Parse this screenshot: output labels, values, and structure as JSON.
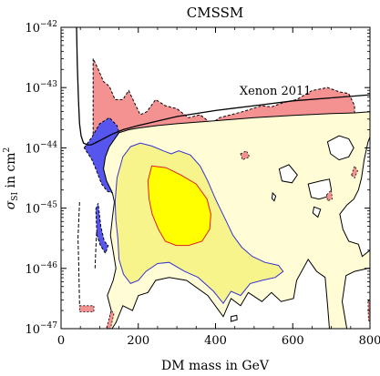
{
  "chart_data": {
    "type": "contour",
    "title": "CMSSM",
    "xlabel": "DM mass in GeV",
    "ylabel": "σ_SI in cm²",
    "ylabel_parts": {
      "main": "σ",
      "sub": "SI",
      "rest": " in cm",
      "sup": "2"
    },
    "xlim": [
      0,
      800
    ],
    "ylim_log10": [
      -47,
      -42
    ],
    "y_scale": "log",
    "grid": false,
    "x_ticks": [
      0,
      200,
      400,
      600,
      800
    ],
    "x_tick_labels": [
      "0",
      "200",
      "400",
      "600",
      "800"
    ],
    "y_ticks_log10": [
      -47,
      -46,
      -45,
      -44,
      -43,
      -42
    ],
    "y_tick_labels": [
      {
        "base": "10",
        "exp": "−47"
      },
      {
        "base": "10",
        "exp": "−46"
      },
      {
        "base": "10",
        "exp": "−45"
      },
      {
        "base": "10",
        "exp": "−44"
      },
      {
        "base": "10",
        "exp": "−43"
      },
      {
        "base": "10",
        "exp": "−42"
      }
    ],
    "annotation": {
      "text": "Xenon 2011",
      "x": 555,
      "y_log10": -43.12
    },
    "colors": {
      "pink": "#f49292",
      "blue": "#5656ee",
      "cream": "#fffcd6",
      "light_yellow": "#f8f48c",
      "yellow": "#ffff00",
      "red_line": "#dd2222",
      "blue_line": "#3333cc",
      "black_line": "#000000"
    },
    "regions": [
      {
        "role": "pink-top",
        "fill": "#f49292",
        "stroke": "#000000",
        "dashed": true,
        "points": [
          [
            83,
            -44.0
          ],
          [
            83,
            -42.52
          ],
          [
            95,
            -42.68
          ],
          [
            110,
            -42.9
          ],
          [
            125,
            -42.98
          ],
          [
            140,
            -43.2
          ],
          [
            160,
            -43.2
          ],
          [
            175,
            -43.05
          ],
          [
            190,
            -43.25
          ],
          [
            205,
            -43.45
          ],
          [
            222,
            -43.4
          ],
          [
            245,
            -43.2
          ],
          [
            270,
            -43.3
          ],
          [
            300,
            -43.35
          ],
          [
            330,
            -43.5
          ],
          [
            360,
            -43.45
          ],
          [
            390,
            -43.6
          ],
          [
            410,
            -43.5
          ],
          [
            440,
            -43.45
          ],
          [
            470,
            -43.4
          ],
          [
            495,
            -43.35
          ],
          [
            520,
            -43.3
          ],
          [
            545,
            -43.32
          ],
          [
            575,
            -43.25
          ],
          [
            610,
            -43.2
          ],
          [
            650,
            -43.05
          ],
          [
            690,
            -43.0
          ],
          [
            720,
            -43.07
          ],
          [
            745,
            -43.1
          ],
          [
            760,
            -43.3
          ],
          [
            760,
            -43.42
          ],
          [
            600,
            -43.5
          ],
          [
            400,
            -43.6
          ],
          [
            300,
            -43.65
          ],
          [
            250,
            -43.7
          ],
          [
            200,
            -43.8
          ],
          [
            160,
            -43.87
          ],
          [
            125,
            -43.95
          ],
          [
            100,
            -44.0
          ]
        ]
      },
      {
        "role": "blue-left",
        "fill": "#5656ee",
        "stroke": "#000000",
        "dashed": true,
        "points": [
          [
            60,
            -44.0
          ],
          [
            80,
            -43.82
          ],
          [
            100,
            -43.6
          ],
          [
            125,
            -43.5
          ],
          [
            145,
            -43.63
          ],
          [
            150,
            -43.75
          ],
          [
            125,
            -43.98
          ],
          [
            115,
            -44.15
          ],
          [
            110,
            -44.35
          ],
          [
            118,
            -44.55
          ],
          [
            128,
            -44.68
          ],
          [
            133,
            -44.75
          ],
          [
            120,
            -44.72
          ],
          [
            105,
            -44.6
          ],
          [
            90,
            -44.35
          ],
          [
            80,
            -44.2
          ],
          [
            70,
            -44.1
          ]
        ]
      },
      {
        "role": "blue-strip",
        "fill": "#5656ee",
        "stroke": "#000000",
        "dashed": true,
        "points": [
          [
            90,
            -45.02
          ],
          [
            96,
            -44.92
          ],
          [
            103,
            -45.3
          ],
          [
            112,
            -45.55
          ],
          [
            122,
            -45.62
          ],
          [
            115,
            -45.75
          ],
          [
            102,
            -45.62
          ],
          [
            93,
            -45.45
          ]
        ]
      },
      {
        "role": "cream-base",
        "fill": "#fffcd6",
        "stroke": "#000000",
        "dashed": false,
        "points": [
          [
            133,
            -44.75
          ],
          [
            128,
            -44.68
          ],
          [
            118,
            -44.55
          ],
          [
            110,
            -44.35
          ],
          [
            115,
            -44.15
          ],
          [
            125,
            -43.98
          ],
          [
            150,
            -43.75
          ],
          [
            175,
            -43.7
          ],
          [
            200,
            -43.67
          ],
          [
            250,
            -43.63
          ],
          [
            300,
            -43.6
          ],
          [
            400,
            -43.55
          ],
          [
            500,
            -43.5
          ],
          [
            600,
            -43.46
          ],
          [
            700,
            -43.43
          ],
          [
            760,
            -43.42
          ],
          [
            800,
            -43.4
          ],
          [
            800,
            -47.0
          ],
          [
            695,
            -47.0
          ],
          [
            690,
            -46.6
          ],
          [
            684,
            -46.15
          ],
          [
            662,
            -46.05
          ],
          [
            640,
            -45.85
          ],
          [
            610,
            -46.2
          ],
          [
            602,
            -46.5
          ],
          [
            570,
            -46.55
          ],
          [
            545,
            -46.4
          ],
          [
            520,
            -46.55
          ],
          [
            485,
            -46.4
          ],
          [
            465,
            -46.62
          ],
          [
            440,
            -46.5
          ],
          [
            420,
            -46.8
          ],
          [
            380,
            -46.45
          ],
          [
            325,
            -46.2
          ],
          [
            280,
            -46.15
          ],
          [
            245,
            -46.2
          ],
          [
            225,
            -46.4
          ],
          [
            200,
            -46.45
          ],
          [
            185,
            -46.7
          ],
          [
            160,
            -46.62
          ],
          [
            142,
            -46.9
          ],
          [
            132,
            -47.0
          ],
          [
            120,
            -47.0
          ],
          [
            130,
            -46.7
          ],
          [
            120,
            -46.45
          ],
          [
            135,
            -46.2
          ],
          [
            142,
            -46.0
          ],
          [
            136,
            -45.75
          ],
          [
            128,
            -45.45
          ],
          [
            133,
            -45.15
          ],
          [
            138,
            -44.9
          ]
        ]
      },
      {
        "role": "light-yellow",
        "fill": "#f8f48c",
        "stroke": "#3333cc",
        "dashed": false,
        "points": [
          [
            145,
            -44.5
          ],
          [
            160,
            -44.15
          ],
          [
            180,
            -43.98
          ],
          [
            205,
            -43.92
          ],
          [
            235,
            -43.97
          ],
          [
            265,
            -44.05
          ],
          [
            285,
            -44.1
          ],
          [
            305,
            -44.05
          ],
          [
            335,
            -44.12
          ],
          [
            360,
            -44.3
          ],
          [
            380,
            -44.55
          ],
          [
            400,
            -44.85
          ],
          [
            428,
            -45.22
          ],
          [
            445,
            -45.45
          ],
          [
            468,
            -45.65
          ],
          [
            495,
            -45.8
          ],
          [
            528,
            -45.9
          ],
          [
            563,
            -45.95
          ],
          [
            575,
            -46.05
          ],
          [
            555,
            -46.15
          ],
          [
            520,
            -46.2
          ],
          [
            490,
            -46.25
          ],
          [
            465,
            -46.45
          ],
          [
            440,
            -46.38
          ],
          [
            420,
            -46.58
          ],
          [
            395,
            -46.38
          ],
          [
            355,
            -46.15
          ],
          [
            320,
            -46.05
          ],
          [
            280,
            -45.9
          ],
          [
            250,
            -45.92
          ],
          [
            220,
            -46.05
          ],
          [
            200,
            -46.2
          ],
          [
            180,
            -46.25
          ],
          [
            162,
            -46.1
          ],
          [
            150,
            -45.85
          ],
          [
            147,
            -45.5
          ],
          [
            142,
            -45.2
          ],
          [
            140,
            -44.9
          ]
        ]
      },
      {
        "role": "yellow-core",
        "fill": "#ffff00",
        "stroke": "#dd2222",
        "dashed": false,
        "points": [
          [
            235,
            -44.3
          ],
          [
            272,
            -44.33
          ],
          [
            310,
            -44.45
          ],
          [
            350,
            -44.6
          ],
          [
            378,
            -44.85
          ],
          [
            388,
            -45.1
          ],
          [
            385,
            -45.35
          ],
          [
            365,
            -45.55
          ],
          [
            330,
            -45.62
          ],
          [
            298,
            -45.62
          ],
          [
            270,
            -45.55
          ],
          [
            252,
            -45.35
          ],
          [
            236,
            -45.1
          ],
          [
            228,
            -44.85
          ],
          [
            225,
            -44.55
          ]
        ]
      }
    ],
    "holes": [
      {
        "points": [
          [
            565,
            -44.35
          ],
          [
            590,
            -44.28
          ],
          [
            612,
            -44.45
          ],
          [
            598,
            -44.58
          ],
          [
            572,
            -44.55
          ]
        ]
      },
      {
        "points": [
          [
            548,
            -44.75
          ],
          [
            556,
            -44.8
          ],
          [
            552,
            -44.88
          ],
          [
            546,
            -44.84
          ]
        ]
      },
      {
        "points": [
          [
            640,
            -44.6
          ],
          [
            672,
            -44.55
          ],
          [
            695,
            -44.52
          ],
          [
            700,
            -44.7
          ],
          [
            695,
            -44.8
          ],
          [
            668,
            -44.85
          ],
          [
            648,
            -44.82
          ]
        ]
      },
      {
        "points": [
          [
            655,
            -44.98
          ],
          [
            672,
            -45.02
          ],
          [
            665,
            -45.15
          ],
          [
            652,
            -45.08
          ]
        ]
      },
      {
        "points": [
          [
            440,
            -46.8
          ],
          [
            455,
            -46.78
          ],
          [
            456,
            -46.85
          ],
          [
            440,
            -46.88
          ]
        ]
      },
      {
        "points": [
          [
            722,
            -45.1
          ],
          [
            740,
            -44.95
          ],
          [
            758,
            -44.85
          ],
          [
            770,
            -44.7
          ],
          [
            778,
            -44.5
          ],
          [
            785,
            -44.2
          ],
          [
            795,
            -43.9
          ],
          [
            800,
            -43.82
          ],
          [
            800,
            -45.7
          ],
          [
            780,
            -45.8
          ],
          [
            770,
            -45.6
          ],
          [
            745,
            -45.55
          ],
          [
            730,
            -45.35
          ]
        ]
      },
      {
        "points": [
          [
            690,
            -43.9
          ],
          [
            720,
            -43.8
          ],
          [
            745,
            -43.85
          ],
          [
            758,
            -44.0
          ],
          [
            745,
            -44.15
          ],
          [
            720,
            -44.2
          ],
          [
            698,
            -44.1
          ]
        ]
      },
      {
        "points": [
          [
            738,
            -46.12
          ],
          [
            760,
            -46.05
          ],
          [
            795,
            -46.0
          ],
          [
            800,
            -46.0
          ],
          [
            800,
            -47.0
          ],
          [
            740,
            -47.0
          ],
          [
            728,
            -46.55
          ]
        ]
      }
    ],
    "pink_patches": [
      {
        "points": [
          [
            465,
            -44.1
          ],
          [
            480,
            -44.05
          ],
          [
            488,
            -44.15
          ],
          [
            470,
            -44.2
          ]
        ]
      },
      {
        "points": [
          [
            688,
            -44.78
          ],
          [
            700,
            -44.7
          ],
          [
            702,
            -44.85
          ],
          [
            690,
            -44.88
          ]
        ]
      },
      {
        "points": [
          [
            48,
            -46.62
          ],
          [
            85,
            -46.62
          ],
          [
            85,
            -46.72
          ],
          [
            48,
            -46.72
          ]
        ]
      },
      {
        "points": [
          [
            118,
            -46.98
          ],
          [
            130,
            -46.7
          ],
          [
            137,
            -46.75
          ],
          [
            128,
            -47.0
          ]
        ]
      },
      {
        "points": [
          [
            795,
            -46.55
          ],
          [
            800,
            -46.5
          ],
          [
            800,
            -46.9
          ],
          [
            796,
            -46.85
          ]
        ]
      },
      {
        "points": [
          [
            752,
            -44.45
          ],
          [
            760,
            -44.3
          ],
          [
            768,
            -44.38
          ],
          [
            760,
            -44.5
          ]
        ]
      }
    ],
    "dashed_lines": [
      {
        "points": [
          [
            48,
            -44.9
          ],
          [
            44,
            -45.5
          ],
          [
            46,
            -46.0
          ],
          [
            48,
            -46.6
          ]
        ]
      },
      {
        "points": [
          [
            92,
            -45.4
          ],
          [
            90,
            -45.7
          ],
          [
            88,
            -46.0
          ]
        ]
      }
    ],
    "xenon_line": [
      [
        40,
        -42.0
      ],
      [
        42,
        -42.6
      ],
      [
        45,
        -43.2
      ],
      [
        48,
        -43.6
      ],
      [
        52,
        -43.8
      ],
      [
        58,
        -43.92
      ],
      [
        68,
        -43.95
      ],
      [
        78,
        -43.95
      ],
      [
        100,
        -43.88
      ],
      [
        130,
        -43.78
      ],
      [
        160,
        -43.7
      ],
      [
        200,
        -43.63
      ],
      [
        300,
        -43.48
      ],
      [
        400,
        -43.38
      ],
      [
        500,
        -43.3
      ],
      [
        600,
        -43.22
      ],
      [
        700,
        -43.17
      ],
      [
        800,
        -43.12
      ]
    ]
  }
}
